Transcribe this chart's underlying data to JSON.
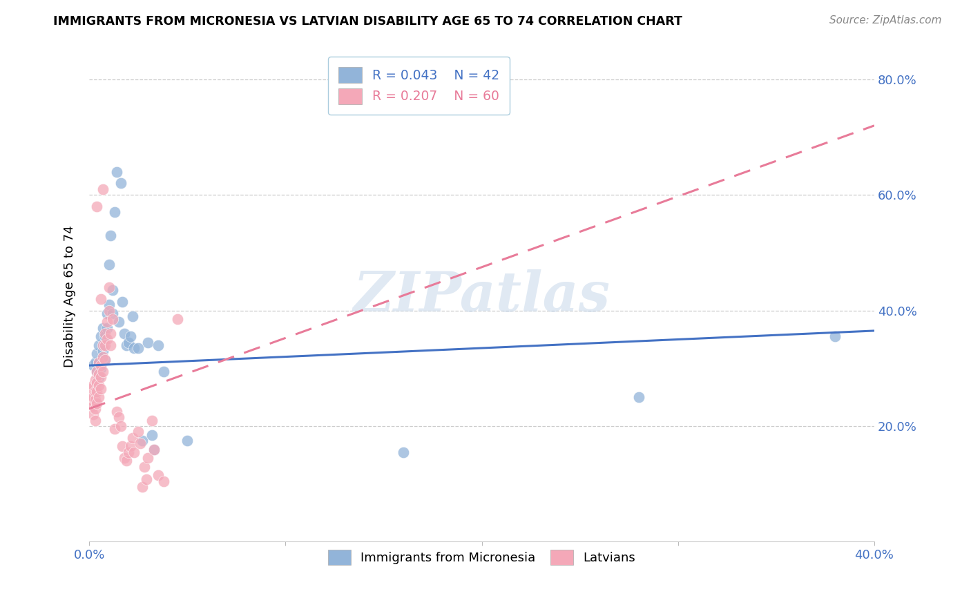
{
  "title": "IMMIGRANTS FROM MICRONESIA VS LATVIAN DISABILITY AGE 65 TO 74 CORRELATION CHART",
  "source": "Source: ZipAtlas.com",
  "ylabel_label": "Disability Age 65 to 74",
  "xlim": [
    0.0,
    0.4
  ],
  "ylim": [
    0.0,
    0.85
  ],
  "x_ticks": [
    0.0,
    0.1,
    0.2,
    0.3,
    0.4
  ],
  "x_tick_labels": [
    "0.0%",
    "",
    "",
    "",
    "40.0%"
  ],
  "y_ticks": [
    0.2,
    0.4,
    0.6,
    0.8
  ],
  "y_tick_labels": [
    "20.0%",
    "40.0%",
    "60.0%",
    "80.0%"
  ],
  "legend_r_blue": "R = 0.043",
  "legend_n_blue": "N = 42",
  "legend_r_pink": "R = 0.207",
  "legend_n_pink": "N = 60",
  "blue_color": "#92B4D9",
  "pink_color": "#F4A8B8",
  "blue_line_color": "#4472C4",
  "pink_line_color": "#E87B99",
  "axis_color": "#4472C4",
  "grid_color": "#CCCCCC",
  "watermark": "ZIPatlas",
  "blue_scatter_x": [
    0.002,
    0.003,
    0.004,
    0.004,
    0.005,
    0.005,
    0.005,
    0.006,
    0.006,
    0.007,
    0.007,
    0.008,
    0.008,
    0.009,
    0.009,
    0.01,
    0.01,
    0.011,
    0.012,
    0.012,
    0.013,
    0.014,
    0.015,
    0.016,
    0.017,
    0.018,
    0.019,
    0.02,
    0.021,
    0.022,
    0.023,
    0.025,
    0.027,
    0.03,
    0.032,
    0.033,
    0.035,
    0.038,
    0.05,
    0.16,
    0.28,
    0.38
  ],
  "blue_scatter_y": [
    0.305,
    0.31,
    0.325,
    0.295,
    0.34,
    0.31,
    0.285,
    0.355,
    0.3,
    0.37,
    0.33,
    0.355,
    0.315,
    0.395,
    0.37,
    0.41,
    0.48,
    0.53,
    0.435,
    0.395,
    0.57,
    0.64,
    0.38,
    0.62,
    0.415,
    0.36,
    0.34,
    0.345,
    0.355,
    0.39,
    0.335,
    0.335,
    0.175,
    0.345,
    0.185,
    0.16,
    0.34,
    0.295,
    0.175,
    0.155,
    0.25,
    0.355
  ],
  "pink_scatter_x": [
    0.001,
    0.001,
    0.002,
    0.002,
    0.002,
    0.002,
    0.003,
    0.003,
    0.003,
    0.003,
    0.003,
    0.004,
    0.004,
    0.004,
    0.004,
    0.004,
    0.005,
    0.005,
    0.005,
    0.005,
    0.006,
    0.006,
    0.006,
    0.006,
    0.007,
    0.007,
    0.007,
    0.007,
    0.008,
    0.008,
    0.008,
    0.009,
    0.009,
    0.01,
    0.01,
    0.011,
    0.011,
    0.012,
    0.013,
    0.014,
    0.015,
    0.016,
    0.017,
    0.018,
    0.019,
    0.02,
    0.021,
    0.022,
    0.023,
    0.025,
    0.026,
    0.027,
    0.028,
    0.029,
    0.03,
    0.032,
    0.033,
    0.035,
    0.038,
    0.045
  ],
  "pink_scatter_y": [
    0.265,
    0.245,
    0.27,
    0.25,
    0.235,
    0.22,
    0.28,
    0.26,
    0.245,
    0.23,
    0.21,
    0.295,
    0.275,
    0.26,
    0.24,
    0.58,
    0.31,
    0.29,
    0.27,
    0.25,
    0.305,
    0.285,
    0.265,
    0.42,
    0.34,
    0.32,
    0.295,
    0.61,
    0.36,
    0.34,
    0.315,
    0.38,
    0.35,
    0.4,
    0.44,
    0.36,
    0.34,
    0.385,
    0.195,
    0.225,
    0.215,
    0.2,
    0.165,
    0.145,
    0.14,
    0.155,
    0.165,
    0.18,
    0.155,
    0.19,
    0.17,
    0.095,
    0.13,
    0.108,
    0.145,
    0.21,
    0.16,
    0.115,
    0.105,
    0.385
  ],
  "blue_line_slope": 0.15,
  "blue_line_intercept": 0.305,
  "pink_line_x0": 0.0,
  "pink_line_y0": 0.23,
  "pink_line_x1": 0.4,
  "pink_line_y1": 0.72
}
